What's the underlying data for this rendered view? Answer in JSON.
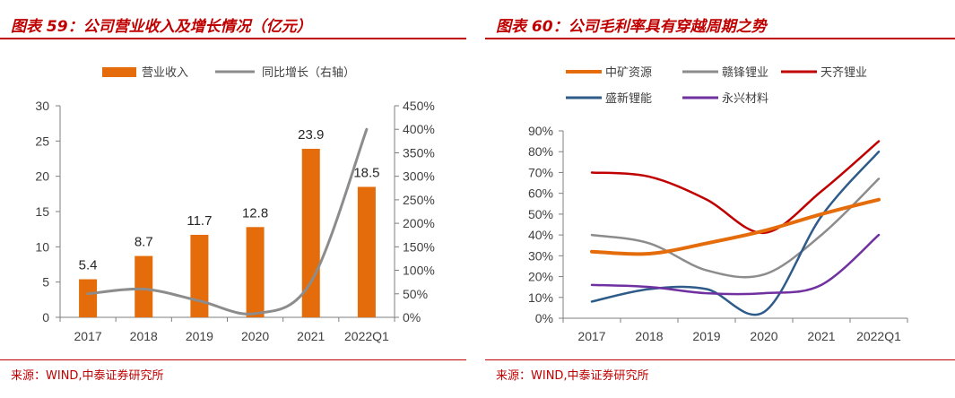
{
  "chart_data": [
    {
      "type": "bar",
      "title": "图表 59：公司营业收入及增长情况（亿元）",
      "source": "来源：WIND,中泰证券研究所",
      "categories": [
        "2017",
        "2018",
        "2019",
        "2020",
        "2021",
        "2022Q1"
      ],
      "series": [
        {
          "name": "营业收入",
          "type": "bar",
          "axis": "left",
          "color": "#e46c0a",
          "values": [
            5.4,
            8.7,
            11.7,
            12.8,
            23.9,
            18.5
          ],
          "labels": [
            "5.4",
            "8.7",
            "11.7",
            "12.8",
            "23.9",
            "18.5"
          ]
        },
        {
          "name": "同比增长（右轴）",
          "type": "line",
          "axis": "right",
          "color": "#8c8c8c",
          "values": [
            50,
            60,
            35,
            8,
            75,
            400
          ]
        }
      ],
      "left_axis": {
        "ylim": [
          0,
          30
        ],
        "ticks": [
          "0",
          "5",
          "10",
          "15",
          "20",
          "25",
          "30"
        ]
      },
      "right_axis": {
        "ylim": [
          0,
          450
        ],
        "ticks": [
          "0%",
          "50%",
          "100%",
          "150%",
          "200%",
          "250%",
          "300%",
          "350%",
          "400%",
          "450%"
        ]
      },
      "legend": "top"
    },
    {
      "type": "line",
      "title": "图表 60：公司毛利率具有穿越周期之势",
      "source": "来源：WIND,中泰证券研究所",
      "categories": [
        "2017",
        "2018",
        "2019",
        "2020",
        "2021",
        "2022Q1"
      ],
      "ylim": [
        0,
        90
      ],
      "yticks": [
        "0%",
        "10%",
        "20%",
        "30%",
        "40%",
        "50%",
        "60%",
        "70%",
        "80%",
        "90%"
      ],
      "series": [
        {
          "name": "中矿资源",
          "color": "#e46c0a",
          "width": 4,
          "values": [
            32,
            31,
            36,
            42,
            50,
            57
          ]
        },
        {
          "name": "赣锋锂业",
          "color": "#8c8c8c",
          "width": 2.5,
          "values": [
            40,
            36,
            23,
            21,
            40,
            67
          ]
        },
        {
          "name": "天齐锂业",
          "color": "#c00000",
          "width": 2.5,
          "values": [
            70,
            68,
            57,
            41,
            61,
            85
          ]
        },
        {
          "name": "盛新锂能",
          "color": "#2e5b8a",
          "width": 2.5,
          "values": [
            8,
            14,
            14,
            3,
            49,
            80
          ]
        },
        {
          "name": "永兴材料",
          "color": "#7030a0",
          "width": 2.5,
          "values": [
            16,
            15,
            12,
            12,
            16,
            40
          ]
        }
      ],
      "legend": "top"
    }
  ]
}
